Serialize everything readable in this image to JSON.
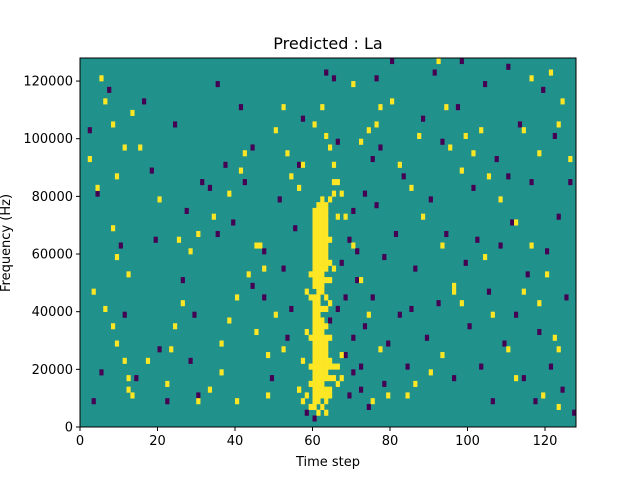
{
  "chart_data": {
    "type": "heatmap",
    "title": "Predicted : La",
    "xlabel": "Time step",
    "ylabel": "Frequency (Hz)",
    "xlim": [
      0,
      128
    ],
    "ylim": [
      0,
      128000
    ],
    "x_ticks": [
      0,
      20,
      40,
      60,
      80,
      100,
      120
    ],
    "y_ticks": [
      0,
      20000,
      40000,
      60000,
      80000,
      100000,
      120000
    ],
    "x_tick_labels": [
      "0",
      "20",
      "40",
      "60",
      "80",
      "100",
      "120"
    ],
    "y_tick_labels": [
      "0",
      "20000",
      "40000",
      "60000",
      "80000",
      "100000",
      "120000"
    ],
    "grid": false,
    "legend": "none",
    "colormap": "viridis",
    "colors": {
      "background": "#21918c",
      "high": "#fde725",
      "low": "#440154"
    },
    "bins": {
      "time_steps": 128,
      "frequency_bins": 64,
      "bin_hz": 2000
    },
    "high_cells": [
      [
        5,
        120000
      ],
      [
        6,
        112000
      ],
      [
        8,
        104000
      ],
      [
        11,
        96000
      ],
      [
        13,
        108000
      ],
      [
        2,
        92000
      ],
      [
        4,
        82000
      ],
      [
        8,
        68000
      ],
      [
        9,
        58000
      ],
      [
        12,
        52000
      ],
      [
        3,
        46000
      ],
      [
        6,
        40000
      ],
      [
        8,
        34000
      ],
      [
        9,
        28000
      ],
      [
        11,
        22000
      ],
      [
        12,
        16000
      ],
      [
        13,
        10000
      ],
      [
        12,
        12000
      ],
      [
        17,
        22000
      ],
      [
        22,
        14000
      ],
      [
        23,
        26000
      ],
      [
        24,
        34000
      ],
      [
        26,
        42000
      ],
      [
        28,
        60000
      ],
      [
        30,
        66000
      ],
      [
        34,
        72000
      ],
      [
        38,
        80000
      ],
      [
        41,
        88000
      ],
      [
        42,
        94000
      ],
      [
        50,
        102000
      ],
      [
        52,
        110000
      ],
      [
        53,
        94000
      ],
      [
        57,
        90000
      ],
      [
        45,
        62000
      ],
      [
        43,
        52000
      ],
      [
        40,
        44000
      ],
      [
        38,
        36000
      ],
      [
        36,
        28000
      ],
      [
        36,
        18000
      ],
      [
        33,
        12000
      ],
      [
        30,
        8000
      ],
      [
        40,
        8000
      ],
      [
        48,
        10000
      ],
      [
        56,
        12000
      ],
      [
        58,
        46000
      ],
      [
        56,
        82000
      ],
      [
        54,
        86000
      ],
      [
        60,
        104000
      ],
      [
        62,
        110000
      ],
      [
        70,
        118000
      ],
      [
        74,
        102000
      ],
      [
        77,
        110000
      ],
      [
        80,
        112000
      ],
      [
        82,
        90000
      ],
      [
        85,
        82000
      ],
      [
        87,
        100000
      ],
      [
        92,
        126000
      ],
      [
        94,
        110000
      ],
      [
        98,
        88000
      ],
      [
        99,
        100000
      ],
      [
        101,
        94000
      ],
      [
        105,
        86000
      ],
      [
        108,
        78000
      ],
      [
        112,
        70000
      ],
      [
        116,
        62000
      ],
      [
        118,
        94000
      ],
      [
        121,
        122000
      ],
      [
        123,
        104000
      ],
      [
        124,
        112000
      ],
      [
        126,
        92000
      ],
      [
        122,
        30000
      ],
      [
        123,
        26000
      ],
      [
        120,
        52000
      ],
      [
        118,
        42000
      ],
      [
        114,
        46000
      ],
      [
        106,
        38000
      ],
      [
        104,
        58000
      ],
      [
        96,
        48000
      ],
      [
        93,
        24000
      ],
      [
        90,
        18000
      ],
      [
        86,
        14000
      ],
      [
        84,
        10000
      ],
      [
        79,
        10000
      ],
      [
        77,
        26000
      ],
      [
        74,
        38000
      ],
      [
        72,
        50000
      ],
      [
        70,
        62000
      ],
      [
        68,
        72000
      ],
      [
        66,
        84000
      ],
      [
        65,
        90000
      ],
      [
        72,
        98000
      ],
      [
        76,
        104000
      ],
      [
        88,
        72000
      ],
      [
        93,
        62000
      ],
      [
        96,
        46000
      ],
      [
        98,
        42000
      ],
      [
        110,
        26000
      ],
      [
        112,
        16000
      ],
      [
        119,
        10000
      ],
      [
        123,
        6000
      ],
      [
        114,
        102000
      ],
      [
        116,
        120000
      ],
      [
        103,
        102000
      ],
      [
        95,
        96000
      ],
      [
        75,
        8000
      ],
      [
        67,
        24000
      ],
      [
        25,
        64000
      ],
      [
        20,
        78000
      ],
      [
        15,
        96000
      ],
      [
        9,
        86000
      ],
      [
        45,
        32000
      ],
      [
        48,
        24000
      ],
      [
        50,
        38000
      ],
      [
        52,
        26000
      ],
      [
        47,
        54000
      ],
      [
        46,
        62000
      ],
      [
        63,
        100000
      ],
      [
        64,
        96000
      ],
      [
        65,
        84000
      ],
      [
        67,
        80000
      ],
      [
        64,
        78000
      ],
      [
        66,
        72000
      ]
    ],
    "high_band": [
      [
        60,
        74000
      ],
      [
        60,
        72000
      ],
      [
        60,
        70000
      ],
      [
        60,
        68000
      ],
      [
        60,
        66000
      ],
      [
        60,
        64000
      ],
      [
        60,
        62000
      ],
      [
        60,
        60000
      ],
      [
        60,
        58000
      ],
      [
        60,
        56000
      ],
      [
        60,
        54000
      ],
      [
        60,
        52000
      ],
      [
        60,
        50000
      ],
      [
        60,
        48000
      ],
      [
        60,
        44000
      ],
      [
        60,
        42000
      ],
      [
        60,
        40000
      ],
      [
        60,
        38000
      ],
      [
        60,
        36000
      ],
      [
        60,
        34000
      ],
      [
        60,
        32000
      ],
      [
        60,
        30000
      ],
      [
        60,
        28000
      ],
      [
        60,
        26000
      ],
      [
        60,
        24000
      ],
      [
        60,
        22000
      ],
      [
        60,
        20000
      ],
      [
        60,
        18000
      ],
      [
        60,
        16000
      ],
      [
        60,
        14000
      ],
      [
        60,
        12000
      ],
      [
        60,
        10000
      ],
      [
        60,
        8000
      ],
      [
        60,
        6000
      ],
      [
        61,
        76000
      ],
      [
        61,
        74000
      ],
      [
        61,
        72000
      ],
      [
        61,
        70000
      ],
      [
        61,
        68000
      ],
      [
        61,
        66000
      ],
      [
        61,
        64000
      ],
      [
        61,
        62000
      ],
      [
        61,
        60000
      ],
      [
        61,
        58000
      ],
      [
        61,
        56000
      ],
      [
        61,
        54000
      ],
      [
        61,
        52000
      ],
      [
        61,
        50000
      ],
      [
        61,
        48000
      ],
      [
        61,
        46000
      ],
      [
        61,
        44000
      ],
      [
        61,
        42000
      ],
      [
        61,
        40000
      ],
      [
        61,
        38000
      ],
      [
        61,
        36000
      ],
      [
        61,
        34000
      ],
      [
        61,
        32000
      ],
      [
        61,
        30000
      ],
      [
        61,
        28000
      ],
      [
        61,
        26000
      ],
      [
        61,
        24000
      ],
      [
        61,
        22000
      ],
      [
        61,
        20000
      ],
      [
        61,
        18000
      ],
      [
        61,
        16000
      ],
      [
        61,
        14000
      ],
      [
        61,
        12000
      ],
      [
        61,
        10000
      ],
      [
        61,
        8000
      ],
      [
        61,
        4000
      ],
      [
        62,
        78000
      ],
      [
        62,
        76000
      ],
      [
        62,
        74000
      ],
      [
        62,
        72000
      ],
      [
        62,
        70000
      ],
      [
        62,
        68000
      ],
      [
        62,
        66000
      ],
      [
        62,
        64000
      ],
      [
        62,
        62000
      ],
      [
        62,
        60000
      ],
      [
        62,
        58000
      ],
      [
        62,
        56000
      ],
      [
        62,
        54000
      ],
      [
        62,
        52000
      ],
      [
        62,
        50000
      ],
      [
        62,
        48000
      ],
      [
        62,
        46000
      ],
      [
        62,
        40000
      ],
      [
        62,
        36000
      ],
      [
        62,
        34000
      ],
      [
        62,
        32000
      ],
      [
        62,
        30000
      ],
      [
        62,
        28000
      ],
      [
        62,
        26000
      ],
      [
        62,
        24000
      ],
      [
        62,
        22000
      ],
      [
        62,
        20000
      ],
      [
        62,
        18000
      ],
      [
        62,
        16000
      ],
      [
        62,
        14000
      ],
      [
        62,
        12000
      ],
      [
        62,
        10000
      ],
      [
        62,
        6000
      ],
      [
        63,
        76000
      ],
      [
        63,
        74000
      ],
      [
        63,
        72000
      ],
      [
        63,
        70000
      ],
      [
        63,
        68000
      ],
      [
        63,
        66000
      ],
      [
        63,
        64000
      ],
      [
        63,
        62000
      ],
      [
        63,
        60000
      ],
      [
        63,
        58000
      ],
      [
        63,
        56000
      ],
      [
        63,
        54000
      ],
      [
        63,
        50000
      ],
      [
        63,
        44000
      ],
      [
        63,
        40000
      ],
      [
        63,
        34000
      ],
      [
        63,
        30000
      ],
      [
        63,
        28000
      ],
      [
        63,
        26000
      ],
      [
        63,
        24000
      ],
      [
        63,
        22000
      ],
      [
        63,
        20000
      ],
      [
        63,
        18000
      ],
      [
        63,
        16000
      ],
      [
        63,
        12000
      ],
      [
        63,
        10000
      ],
      [
        63,
        8000
      ],
      [
        63,
        4000
      ],
      [
        64,
        64000
      ],
      [
        64,
        56000
      ],
      [
        64,
        50000
      ],
      [
        64,
        42000
      ],
      [
        64,
        30000
      ],
      [
        64,
        22000
      ],
      [
        64,
        20000
      ],
      [
        64,
        16000
      ],
      [
        64,
        12000
      ],
      [
        64,
        10000
      ],
      [
        65,
        80000
      ],
      [
        65,
        54000
      ],
      [
        65,
        20000
      ],
      [
        65,
        16000
      ],
      [
        66,
        20000
      ],
      [
        66,
        14000
      ],
      [
        67,
        16000
      ],
      [
        59,
        52000
      ],
      [
        59,
        44000
      ],
      [
        59,
        30000
      ],
      [
        59,
        20000
      ],
      [
        59,
        14000
      ],
      [
        59,
        6000
      ],
      [
        58,
        32000
      ],
      [
        58,
        10000
      ],
      [
        57,
        22000
      ],
      [
        57,
        8000
      ],
      [
        56,
        12000
      ]
    ],
    "low_cells": [
      [
        2,
        102000
      ],
      [
        4,
        80000
      ],
      [
        7,
        116000
      ],
      [
        11,
        38000
      ],
      [
        14,
        16000
      ],
      [
        16,
        112000
      ],
      [
        18,
        88000
      ],
      [
        20,
        26000
      ],
      [
        22,
        8000
      ],
      [
        24,
        104000
      ],
      [
        27,
        74000
      ],
      [
        29,
        38000
      ],
      [
        31,
        84000
      ],
      [
        35,
        118000
      ],
      [
        37,
        90000
      ],
      [
        39,
        70000
      ],
      [
        41,
        110000
      ],
      [
        44,
        48000
      ],
      [
        47,
        60000
      ],
      [
        49,
        16000
      ],
      [
        51,
        78000
      ],
      [
        53,
        30000
      ],
      [
        55,
        68000
      ],
      [
        57,
        106000
      ],
      [
        58,
        4000
      ],
      [
        63,
        122000
      ],
      [
        64,
        36000
      ],
      [
        66,
        98000
      ],
      [
        67,
        56000
      ],
      [
        68,
        24000
      ],
      [
        68,
        44000
      ],
      [
        69,
        10000
      ],
      [
        69,
        64000
      ],
      [
        70,
        30000
      ],
      [
        70,
        18000
      ],
      [
        71,
        50000
      ],
      [
        71,
        60000
      ],
      [
        72,
        20000
      ],
      [
        72,
        12000
      ],
      [
        73,
        34000
      ],
      [
        74,
        6000
      ],
      [
        75,
        44000
      ],
      [
        76,
        76000
      ],
      [
        76,
        120000
      ],
      [
        78,
        14000
      ],
      [
        78,
        58000
      ],
      [
        79,
        28000
      ],
      [
        80,
        126000
      ],
      [
        81,
        66000
      ],
      [
        82,
        38000
      ],
      [
        83,
        86000
      ],
      [
        84,
        20000
      ],
      [
        86,
        54000
      ],
      [
        88,
        106000
      ],
      [
        89,
        30000
      ],
      [
        90,
        78000
      ],
      [
        91,
        122000
      ],
      [
        92,
        42000
      ],
      [
        94,
        66000
      ],
      [
        96,
        16000
      ],
      [
        97,
        110000
      ],
      [
        99,
        56000
      ],
      [
        100,
        34000
      ],
      [
        101,
        82000
      ],
      [
        103,
        20000
      ],
      [
        104,
        118000
      ],
      [
        105,
        46000
      ],
      [
        106,
        8000
      ],
      [
        107,
        92000
      ],
      [
        108,
        62000
      ],
      [
        109,
        28000
      ],
      [
        110,
        124000
      ],
      [
        111,
        70000
      ],
      [
        112,
        38000
      ],
      [
        113,
        104000
      ],
      [
        114,
        16000
      ],
      [
        115,
        52000
      ],
      [
        116,
        84000
      ],
      [
        117,
        8000
      ],
      [
        118,
        32000
      ],
      [
        119,
        116000
      ],
      [
        120,
        60000
      ],
      [
        121,
        20000
      ],
      [
        122,
        100000
      ],
      [
        123,
        72000
      ],
      [
        124,
        12000
      ],
      [
        125,
        44000
      ],
      [
        126,
        84000
      ],
      [
        127,
        4000
      ],
      [
        62,
        46000
      ],
      [
        66,
        40000
      ],
      [
        70,
        74000
      ],
      [
        73,
        80000
      ],
      [
        75,
        92000
      ],
      [
        44,
        96000
      ],
      [
        42,
        84000
      ],
      [
        33,
        82000
      ],
      [
        19,
        64000
      ],
      [
        10,
        62000
      ],
      [
        5,
        18000
      ],
      [
        3,
        8000
      ],
      [
        26,
        50000
      ],
      [
        28,
        22000
      ],
      [
        30,
        10000
      ],
      [
        35,
        66000
      ],
      [
        47,
        44000
      ],
      [
        52,
        54000
      ],
      [
        54,
        40000
      ],
      [
        56,
        90000
      ],
      [
        60,
        2000
      ],
      [
        65,
        120000
      ],
      [
        77,
        96000
      ],
      [
        85,
        40000
      ],
      [
        93,
        98000
      ],
      [
        102,
        64000
      ],
      [
        110,
        86000
      ],
      [
        98,
        126000
      ]
    ]
  }
}
